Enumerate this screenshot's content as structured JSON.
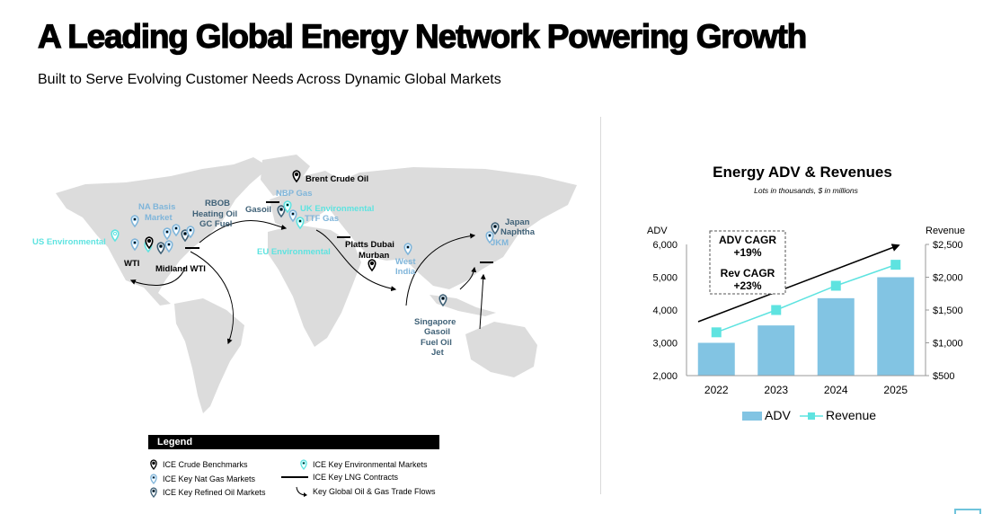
{
  "header": {
    "title": "A Leading Global Energy Network Powering Growth",
    "subtitle": "Built to Serve Evolving Customer Needs Across Dynamic Global Markets"
  },
  "colors": {
    "crude": "#000000",
    "natgas": "#7fb5da",
    "refined": "#3f6177",
    "environmental": "#5ee3e0",
    "bar": "#82c4e3",
    "revenue_line": "#5ee3e0",
    "land": "#dcdcdc"
  },
  "map": {
    "labels": {
      "brent": "Brent Crude Oil",
      "nbp": "NBP Gas",
      "gasoil": "Gasoil",
      "uk_env": "UK Environmental",
      "ttf": "TTF Gas",
      "na_basis_1": "NA Basis",
      "na_basis_2": "Market",
      "rbob": "RBOB",
      "heating_oil": "Heating Oil",
      "gc_fuel": "GC Fuel",
      "us_env": "US Environmental",
      "wti": "WTI",
      "midland": "Midland WTI",
      "eu_env": "EU Environmental",
      "platts_dubai": "Platts Dubai",
      "murban": "Murban",
      "west_india_1": "West",
      "west_india_2": "India",
      "japan": "Japan",
      "naphtha": "Naphtha",
      "jkm": "JKM",
      "singapore": "Singapore",
      "sg_gasoil": "Gasoil",
      "fuel_oil": "Fuel Oil",
      "jet": "Jet"
    }
  },
  "legend": {
    "heading": "Legend",
    "items": {
      "crude": "ICE Crude Benchmarks",
      "natgas": "ICE Key Nat Gas Markets",
      "refined": "ICE Key Refined Oil Markets",
      "environmental": "ICE Key Environmental Markets",
      "lng": "ICE Key LNG Contracts",
      "flows": "Key Global Oil & Gas Trade Flows"
    }
  },
  "chart_data": {
    "type": "bar",
    "title": "Energy ADV & Revenues",
    "subtitle": "Lots in thousands, $ in millions",
    "categories": [
      "2022",
      "2023",
      "2024",
      "2025"
    ],
    "series": [
      {
        "name": "ADV",
        "type": "bar",
        "axis": "left",
        "values": [
          3000,
          3530,
          4360,
          5000
        ]
      },
      {
        "name": "Revenue",
        "type": "line",
        "axis": "right",
        "values": [
          1160,
          1500,
          1870,
          2190
        ]
      }
    ],
    "y_left": {
      "label": "ADV",
      "range": [
        2000,
        6000
      ],
      "ticks": [
        "2,000",
        "3,000",
        "4,000",
        "5,000",
        "6,000"
      ]
    },
    "y_right": {
      "label": "Revenue",
      "range": [
        500,
        2500
      ],
      "ticks": [
        "$500",
        "$1,000",
        "$1,500",
        "$2,000",
        "$2,500"
      ]
    },
    "annotations": {
      "adv_cagr_label": "ADV CAGR",
      "adv_cagr_value": "+19%",
      "rev_cagr_label": "Rev CAGR",
      "rev_cagr_value": "+23%"
    },
    "legend_position": "bottom",
    "grid": false
  }
}
